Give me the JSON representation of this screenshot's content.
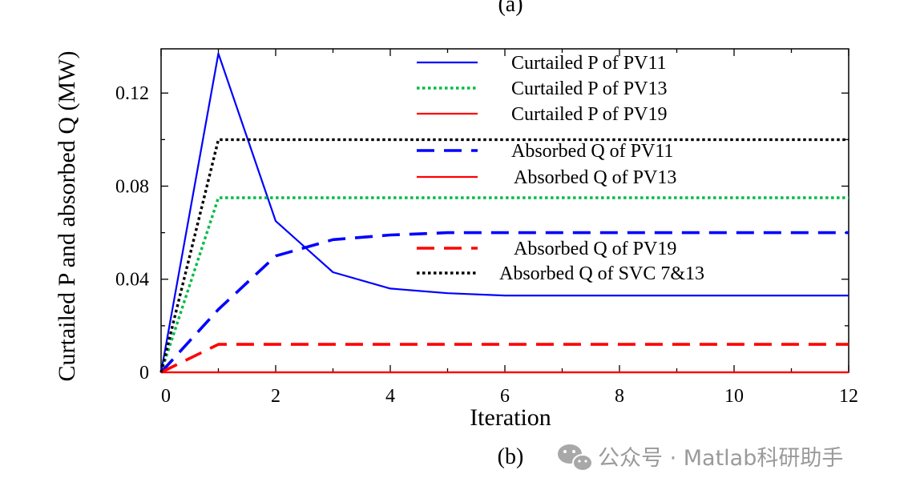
{
  "top_panel_label": "(a)",
  "panel_label": "(b)",
  "watermark": {
    "icon": "wechat-icon",
    "text": "公众号 · Matlab科研助手",
    "color": "#9a9a9a"
  },
  "chart_data": {
    "type": "line",
    "title": "",
    "xlabel": "Iteration",
    "ylabel": "Curtailed P and absorbed Q (MW)",
    "xlim": [
      0,
      12
    ],
    "ylim": [
      0,
      0.139
    ],
    "xticks": [
      0,
      2,
      4,
      6,
      8,
      10,
      12
    ],
    "xtick_labels": [
      "0",
      "2",
      "4",
      "6",
      "8",
      "10",
      "12"
    ],
    "yticks": [
      0,
      0.04,
      0.08,
      0.12
    ],
    "ytick_labels": [
      "0",
      "0.04",
      "0.08",
      "0.12"
    ],
    "grid": false,
    "legend_position": "top-right",
    "series": [
      {
        "name": "Curtailed P of PV11",
        "color": "#0000ff",
        "dash": "solid",
        "x": [
          0,
          1,
          2,
          3,
          4,
          5,
          6,
          7,
          8,
          9,
          10,
          11,
          12
        ],
        "y": [
          0,
          0.137,
          0.065,
          0.043,
          0.036,
          0.034,
          0.033,
          0.033,
          0.033,
          0.033,
          0.033,
          0.033,
          0.033
        ]
      },
      {
        "name": "Curtailed P of PV13",
        "color": "#00bb44",
        "dash": "dotted",
        "x": [
          0,
          1,
          2,
          3,
          4,
          5,
          6,
          7,
          8,
          9,
          10,
          11,
          12
        ],
        "y": [
          0,
          0.075,
          0.075,
          0.075,
          0.075,
          0.075,
          0.075,
          0.075,
          0.075,
          0.075,
          0.075,
          0.075,
          0.075
        ]
      },
      {
        "name": "Curtailed P of PV19",
        "color": "#ff0000",
        "dash": "solid",
        "x": [
          0,
          1,
          2,
          3,
          4,
          5,
          6,
          7,
          8,
          9,
          10,
          11,
          12
        ],
        "y": [
          0,
          0,
          0,
          0,
          0,
          0,
          0,
          0,
          0,
          0,
          0,
          0,
          0
        ]
      },
      {
        "name": "Absorbed Q of PV11",
        "color": "#0000ff",
        "dash": "dashed",
        "x": [
          0,
          1,
          2,
          3,
          4,
          5,
          6,
          7,
          8,
          9,
          10,
          11,
          12
        ],
        "y": [
          0,
          0.027,
          0.05,
          0.057,
          0.059,
          0.06,
          0.06,
          0.06,
          0.06,
          0.06,
          0.06,
          0.06,
          0.06
        ]
      },
      {
        "name": "Absorbed Q of PV13",
        "color": "#ff0000",
        "dash": "solid",
        "x": [
          0,
          1,
          2,
          3,
          4,
          5,
          6,
          7,
          8,
          9,
          10,
          11,
          12
        ],
        "y": [
          0,
          0,
          0,
          0,
          0,
          0,
          0,
          0,
          0,
          0,
          0,
          0,
          0
        ]
      },
      {
        "name": "Absorbed Q of PV19",
        "color": "#ff0000",
        "dash": "dashed",
        "x": [
          0,
          1,
          2,
          3,
          4,
          5,
          6,
          7,
          8,
          9,
          10,
          11,
          12
        ],
        "y": [
          0,
          0.012,
          0.012,
          0.012,
          0.012,
          0.012,
          0.012,
          0.012,
          0.012,
          0.012,
          0.012,
          0.012,
          0.012
        ]
      },
      {
        "name": "Absorbed Q of SVC 7&13",
        "color": "#000000",
        "dash": "dotted",
        "x": [
          0,
          1,
          2,
          3,
          4,
          5,
          6,
          7,
          8,
          9,
          10,
          11,
          12
        ],
        "y": [
          0,
          0.1,
          0.1,
          0.1,
          0.1,
          0.1,
          0.1,
          0.1,
          0.1,
          0.1,
          0.1,
          0.1,
          0.1
        ]
      }
    ]
  }
}
